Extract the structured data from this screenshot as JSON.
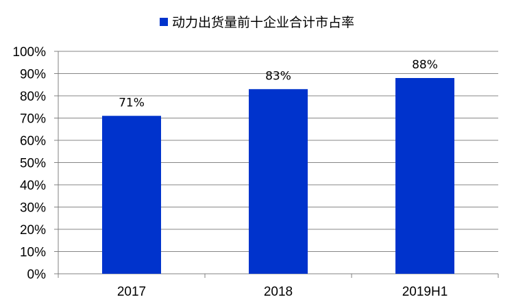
{
  "chart_data": {
    "type": "bar",
    "categories": [
      "2017",
      "2018",
      "2019H1"
    ],
    "series": [
      {
        "name": "动力出货量前十企业合计市占率",
        "values": [
          71,
          83,
          88
        ],
        "color": "#0033CC"
      }
    ],
    "data_labels": [
      "71%",
      "83%",
      "88%"
    ],
    "y_ticks": [
      "0%",
      "10%",
      "20%",
      "30%",
      "40%",
      "50%",
      "60%",
      "70%",
      "80%",
      "90%",
      "100%"
    ],
    "ylim": [
      0,
      100
    ],
    "y_unit": "%",
    "grid": true,
    "legend_position": "top"
  }
}
